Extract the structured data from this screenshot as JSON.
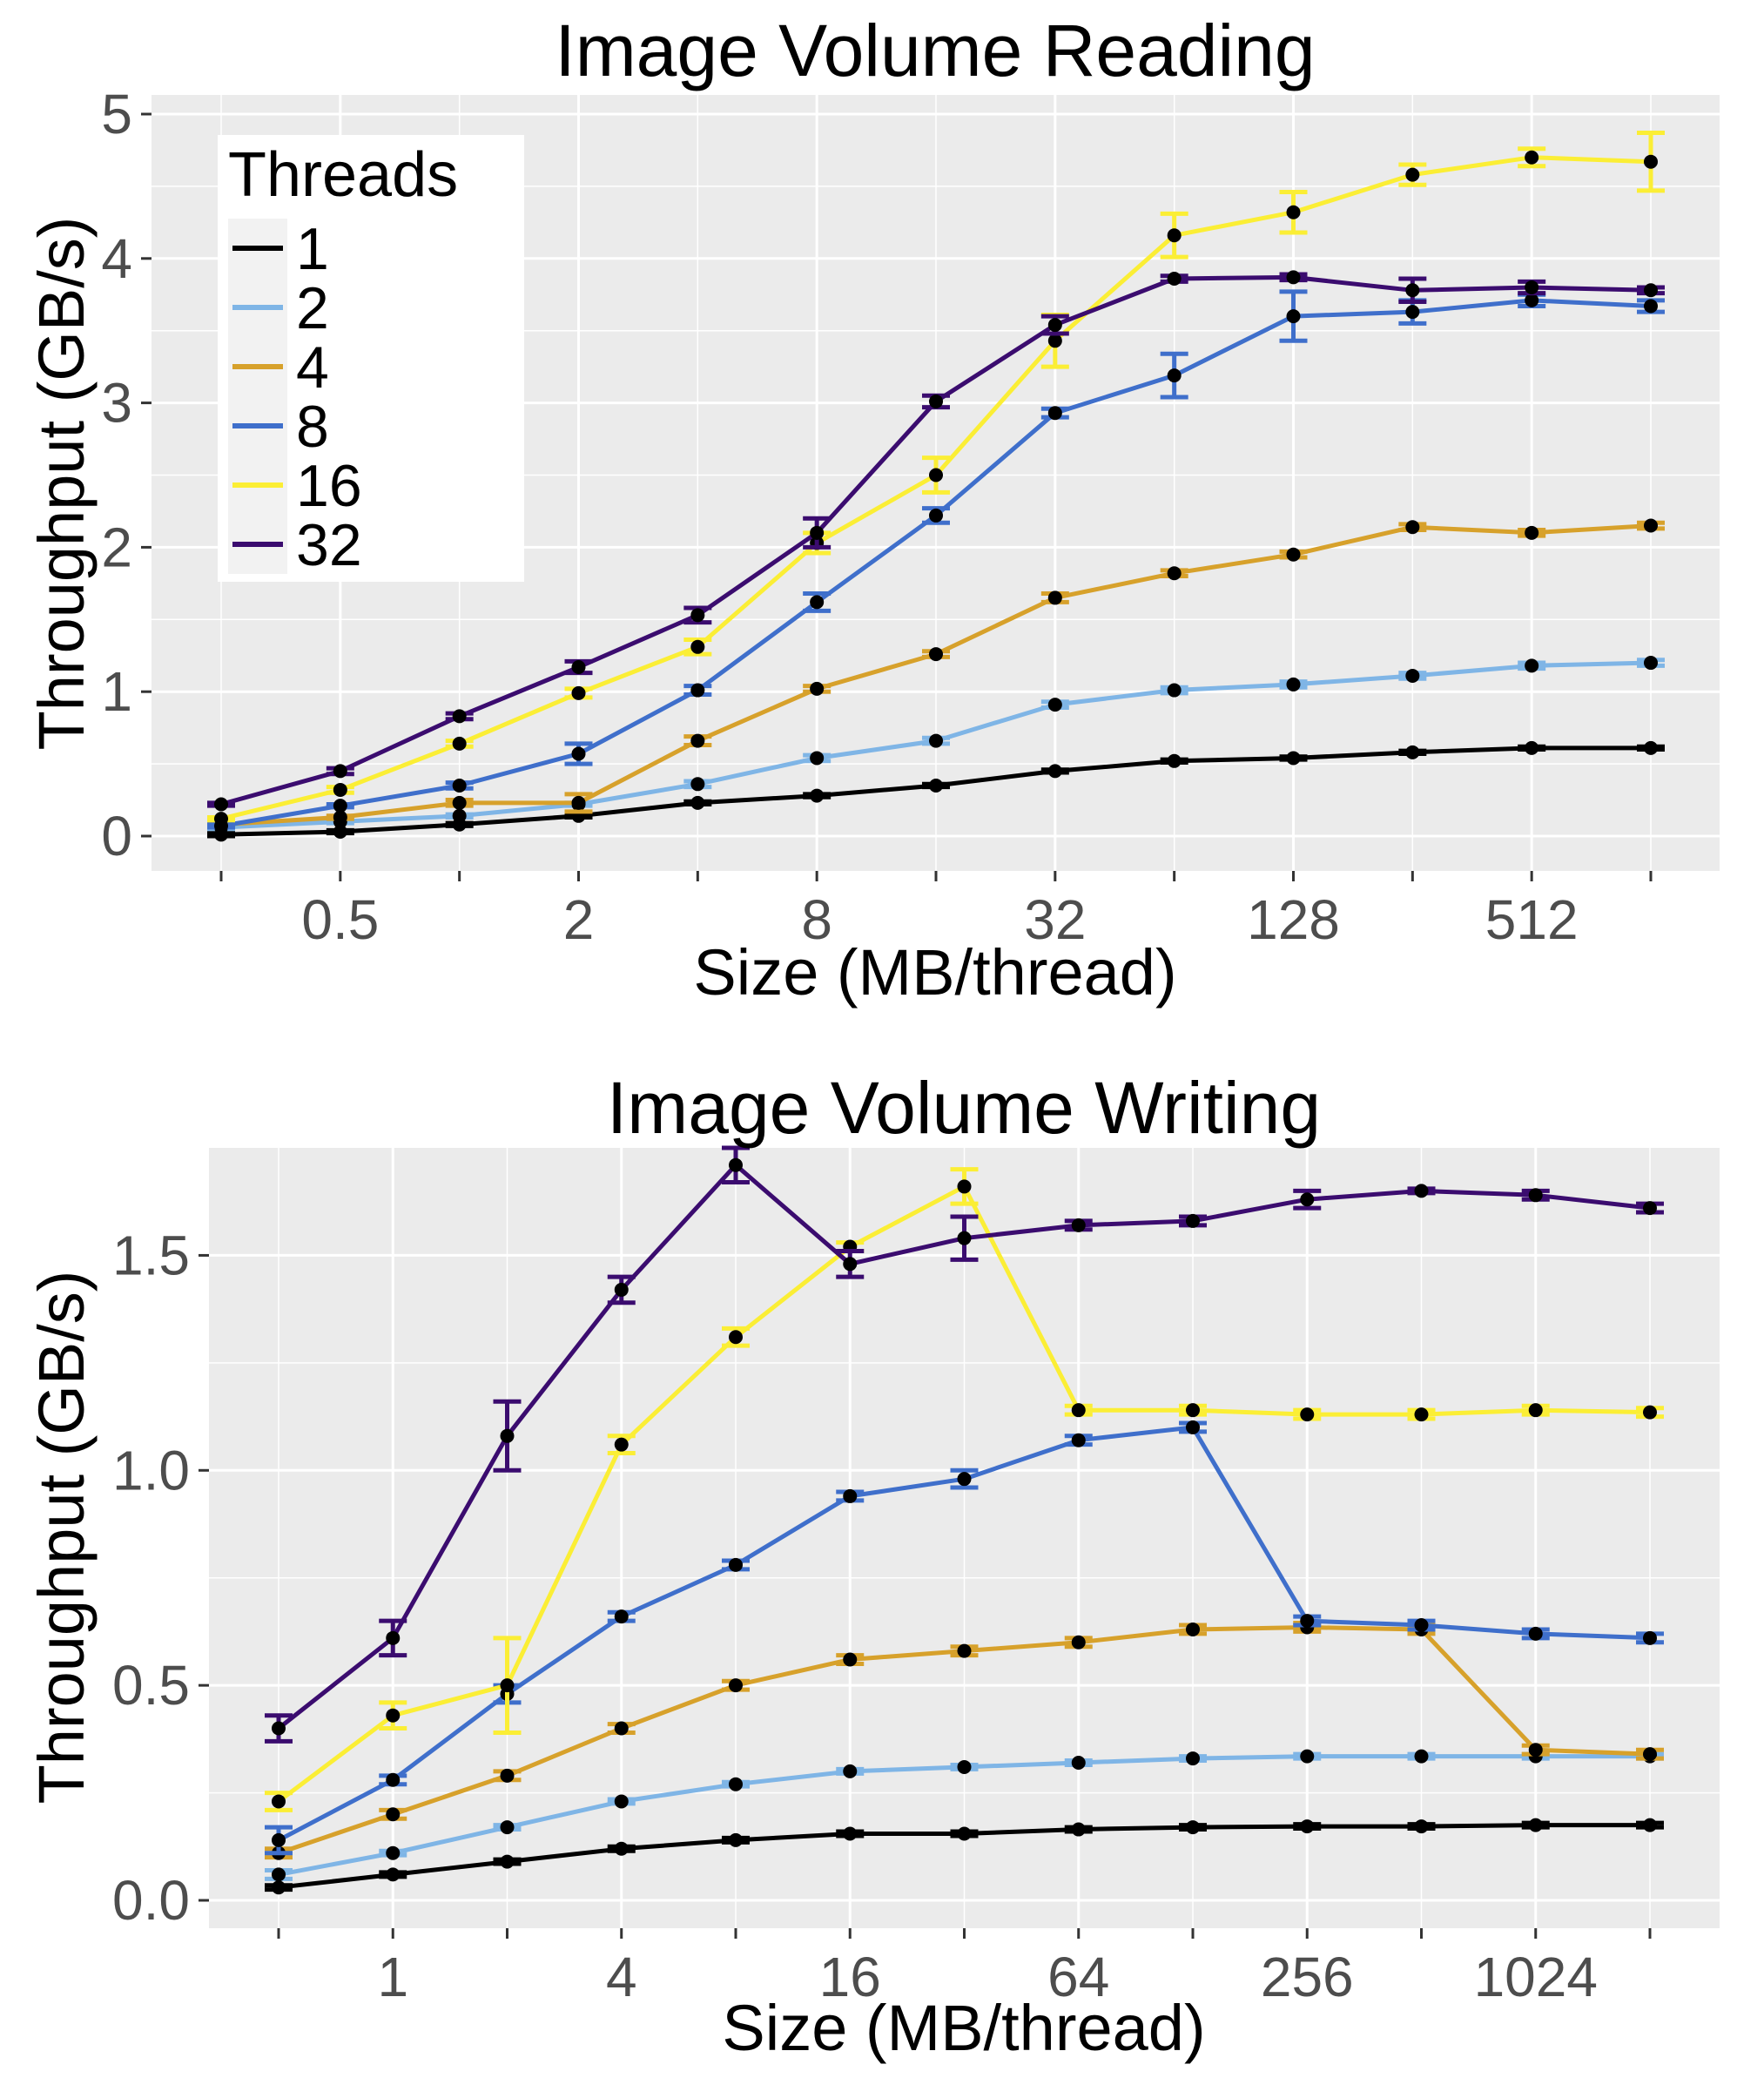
{
  "chart_data": [
    {
      "type": "line",
      "title": "Image Volume Reading",
      "xlabel": "Size (MB/thread)",
      "ylabel": "Throughput (GB/s)",
      "x_scale": "log2",
      "x": [
        0.25,
        0.5,
        1,
        2,
        4,
        8,
        16,
        32,
        64,
        128,
        256,
        512,
        1024
      ],
      "x_tick_labels": [
        "0.5",
        "2",
        "8",
        "32",
        "128",
        "512"
      ],
      "x_tick_values": [
        0.5,
        2,
        8,
        32,
        128,
        512
      ],
      "xlim": [
        0.25,
        1024
      ],
      "ylim": [
        0,
        5
      ],
      "y_ticks": [
        0,
        1,
        2,
        3,
        4,
        5
      ],
      "y_tick_labels": [
        "0",
        "1",
        "2",
        "3",
        "4",
        "5"
      ],
      "grid": true,
      "legend": {
        "title": "Threads",
        "placement": "top-left",
        "entries": [
          "1",
          "2",
          "4",
          "8",
          "16",
          "32"
        ]
      },
      "series": [
        {
          "name": "1",
          "color": "#000000",
          "values": [
            0.01,
            0.03,
            0.08,
            0.14,
            0.23,
            0.28,
            0.35,
            0.45,
            0.52,
            0.54,
            0.58,
            0.61,
            0.61
          ],
          "err": [
            0.01,
            0.01,
            0.01,
            0.01,
            0.01,
            0.01,
            0.01,
            0.01,
            0.01,
            0.01,
            0.01,
            0.01,
            0.01
          ]
        },
        {
          "name": "2",
          "color": "#7fb5e6",
          "values": [
            0.06,
            0.1,
            0.14,
            0.22,
            0.36,
            0.54,
            0.66,
            0.91,
            1.01,
            1.05,
            1.11,
            1.18,
            1.2
          ],
          "err": [
            0.01,
            0.01,
            0.01,
            0.01,
            0.02,
            0.02,
            0.02,
            0.02,
            0.02,
            0.02,
            0.02,
            0.02,
            0.02
          ]
        },
        {
          "name": "4",
          "color": "#d7a12b",
          "values": [
            0.08,
            0.13,
            0.23,
            0.23,
            0.66,
            1.02,
            1.26,
            1.65,
            1.82,
            1.95,
            2.14,
            2.1,
            2.15
          ],
          "err": [
            0.01,
            0.01,
            0.02,
            0.06,
            0.03,
            0.02,
            0.02,
            0.03,
            0.02,
            0.02,
            0.02,
            0.02,
            0.02
          ]
        },
        {
          "name": "8",
          "color": "#3f6fcb",
          "values": [
            0.07,
            0.21,
            0.35,
            0.57,
            1.01,
            1.62,
            2.22,
            2.93,
            3.19,
            3.6,
            3.63,
            3.71,
            3.67
          ],
          "err": [
            0.01,
            0.01,
            0.02,
            0.07,
            0.03,
            0.06,
            0.05,
            0.03,
            0.15,
            0.17,
            0.08,
            0.04,
            0.04
          ]
        },
        {
          "name": "16",
          "color": "#fbee35",
          "values": [
            0.12,
            0.32,
            0.64,
            0.99,
            1.31,
            2.03,
            2.5,
            3.43,
            4.16,
            4.32,
            4.58,
            4.7,
            4.67
          ],
          "err": [
            0.01,
            0.02,
            0.02,
            0.03,
            0.05,
            0.07,
            0.12,
            0.18,
            0.15,
            0.14,
            0.07,
            0.06,
            0.2
          ]
        },
        {
          "name": "32",
          "color": "#3b0c6f",
          "values": [
            0.22,
            0.45,
            0.83,
            1.17,
            1.53,
            2.1,
            3.01,
            3.54,
            3.86,
            3.87,
            3.78,
            3.8,
            3.78
          ],
          "err": [
            0.01,
            0.02,
            0.02,
            0.04,
            0.05,
            0.1,
            0.04,
            0.06,
            0.02,
            0.02,
            0.08,
            0.04,
            0.02
          ]
        }
      ]
    },
    {
      "type": "line",
      "title": "Image Volume Writing",
      "xlabel": "Size (MB/thread)",
      "ylabel": "Throughput (GB/s)",
      "x_scale": "log2",
      "x": [
        0.5,
        1,
        2,
        4,
        8,
        16,
        32,
        64,
        128,
        256,
        512,
        1024,
        2048
      ],
      "x_tick_labels": [
        "1",
        "4",
        "16",
        "64",
        "256",
        "1024"
      ],
      "x_tick_values": [
        1,
        4,
        16,
        64,
        256,
        1024
      ],
      "xlim": [
        0.5,
        2048
      ],
      "ylim": [
        0,
        1.75
      ],
      "y_ticks": [
        0.0,
        0.5,
        1.0,
        1.5
      ],
      "y_tick_labels": [
        "0.0",
        "0.5",
        "1.0",
        "1.5"
      ],
      "grid": true,
      "series": [
        {
          "name": "1",
          "color": "#000000",
          "values": [
            0.03,
            0.06,
            0.09,
            0.12,
            0.14,
            0.155,
            0.155,
            0.165,
            0.17,
            0.172,
            0.172,
            0.175,
            0.175
          ],
          "err": [
            0.005,
            0.005,
            0.005,
            0.005,
            0.005,
            0.005,
            0.005,
            0.005,
            0.005,
            0.005,
            0.005,
            0.005,
            0.005
          ]
        },
        {
          "name": "2",
          "color": "#7fb5e6",
          "values": [
            0.06,
            0.11,
            0.17,
            0.23,
            0.27,
            0.3,
            0.31,
            0.32,
            0.33,
            0.335,
            0.335,
            0.335,
            0.335
          ],
          "err": [
            0.01,
            0.005,
            0.005,
            0.005,
            0.005,
            0.005,
            0.005,
            0.005,
            0.005,
            0.005,
            0.005,
            0.005,
            0.005
          ]
        },
        {
          "name": "4",
          "color": "#d7a12b",
          "values": [
            0.11,
            0.2,
            0.29,
            0.4,
            0.5,
            0.56,
            0.58,
            0.6,
            0.63,
            0.635,
            0.63,
            0.35,
            0.34
          ],
          "err": [
            0.01,
            0.01,
            0.01,
            0.01,
            0.01,
            0.01,
            0.01,
            0.01,
            0.01,
            0.01,
            0.01,
            0.01,
            0.01
          ]
        },
        {
          "name": "8",
          "color": "#3f6fcb",
          "values": [
            0.14,
            0.28,
            0.48,
            0.66,
            0.78,
            0.94,
            0.98,
            1.07,
            1.1,
            0.65,
            0.64,
            0.62,
            0.61
          ],
          "err": [
            0.03,
            0.01,
            0.02,
            0.01,
            0.01,
            0.01,
            0.02,
            0.01,
            0.01,
            0.01,
            0.01,
            0.01,
            0.01
          ]
        },
        {
          "name": "16",
          "color": "#fbee35",
          "values": [
            0.23,
            0.43,
            0.5,
            1.06,
            1.31,
            1.52,
            1.66,
            1.14,
            1.14,
            1.13,
            1.13,
            1.14,
            1.135
          ],
          "err": [
            0.02,
            0.03,
            0.11,
            0.02,
            0.02,
            0.01,
            0.04,
            0.01,
            0.01,
            0.01,
            0.01,
            0.01,
            0.01
          ]
        },
        {
          "name": "32",
          "color": "#3b0c6f",
          "values": [
            0.4,
            0.61,
            1.08,
            1.42,
            1.71,
            1.48,
            1.54,
            1.57,
            1.58,
            1.63,
            1.65,
            1.64,
            1.61
          ],
          "err": [
            0.03,
            0.04,
            0.08,
            0.03,
            0.04,
            0.03,
            0.05,
            0.01,
            0.01,
            0.02,
            0.005,
            0.01,
            0.01
          ]
        }
      ]
    }
  ]
}
